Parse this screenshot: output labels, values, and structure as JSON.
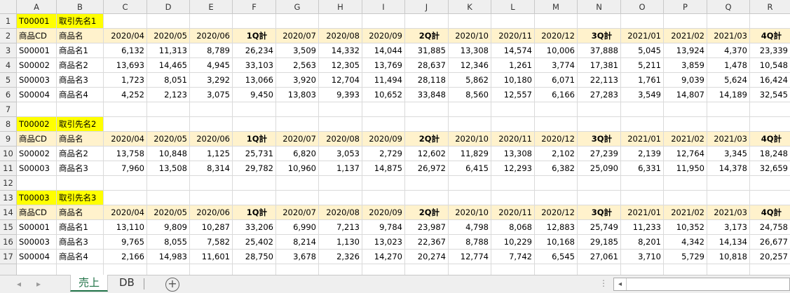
{
  "columns": [
    "A",
    "B",
    "C",
    "D",
    "E",
    "F",
    "G",
    "H",
    "I",
    "J",
    "K",
    "L",
    "M",
    "N",
    "O",
    "P",
    "Q",
    "R"
  ],
  "col_widths": [
    50,
    67,
    62,
    62,
    61,
    62,
    61,
    62,
    61,
    62,
    61,
    62,
    61,
    62,
    61,
    62,
    61,
    58
  ],
  "header_labels": [
    "商品CD",
    "商品名",
    "2020/04",
    "2020/05",
    "2020/06",
    "1Q計",
    "2020/07",
    "2020/08",
    "2020/09",
    "2Q計",
    "2020/10",
    "2020/11",
    "2020/12",
    "3Q計",
    "2021/01",
    "2021/02",
    "2021/03",
    "4Q計"
  ],
  "rows": [
    {
      "n": "1",
      "kind": "title",
      "code": "T00001",
      "name": "取引先名1"
    },
    {
      "n": "2",
      "kind": "header"
    },
    {
      "n": "3",
      "kind": "data",
      "cells": [
        "S00001",
        "商品名1",
        "6,132",
        "11,313",
        "8,789",
        "26,234",
        "3,509",
        "14,332",
        "14,044",
        "31,885",
        "13,308",
        "14,574",
        "10,006",
        "37,888",
        "5,045",
        "13,924",
        "4,370",
        "23,339"
      ]
    },
    {
      "n": "4",
      "kind": "data",
      "cells": [
        "S00002",
        "商品名2",
        "13,693",
        "14,465",
        "4,945",
        "33,103",
        "2,563",
        "12,305",
        "13,769",
        "28,637",
        "12,346",
        "1,261",
        "3,774",
        "17,381",
        "5,211",
        "3,859",
        "1,478",
        "10,548"
      ]
    },
    {
      "n": "5",
      "kind": "data",
      "cells": [
        "S00003",
        "商品名3",
        "1,723",
        "8,051",
        "3,292",
        "13,066",
        "3,920",
        "12,704",
        "11,494",
        "28,118",
        "5,862",
        "10,180",
        "6,071",
        "22,113",
        "1,761",
        "9,039",
        "5,624",
        "16,424"
      ]
    },
    {
      "n": "6",
      "kind": "data",
      "cells": [
        "S00004",
        "商品名4",
        "4,252",
        "2,123",
        "3,075",
        "9,450",
        "13,803",
        "9,393",
        "10,652",
        "33,848",
        "8,560",
        "12,557",
        "6,166",
        "27,283",
        "3,549",
        "14,807",
        "14,189",
        "32,545"
      ]
    },
    {
      "n": "7",
      "kind": "empty"
    },
    {
      "n": "8",
      "kind": "title",
      "code": "T00002",
      "name": "取引先名2"
    },
    {
      "n": "9",
      "kind": "header"
    },
    {
      "n": "10",
      "kind": "data",
      "cells": [
        "S00002",
        "商品名2",
        "13,758",
        "10,848",
        "1,125",
        "25,731",
        "6,820",
        "3,053",
        "2,729",
        "12,602",
        "11,829",
        "13,308",
        "2,102",
        "27,239",
        "2,139",
        "12,764",
        "3,345",
        "18,248"
      ]
    },
    {
      "n": "11",
      "kind": "data",
      "cells": [
        "S00003",
        "商品名3",
        "7,960",
        "13,508",
        "8,314",
        "29,782",
        "10,960",
        "1,137",
        "14,875",
        "26,972",
        "6,415",
        "12,293",
        "6,382",
        "25,090",
        "6,331",
        "11,950",
        "14,378",
        "32,659"
      ]
    },
    {
      "n": "12",
      "kind": "empty"
    },
    {
      "n": "13",
      "kind": "title",
      "code": "T00003",
      "name": "取引先名3"
    },
    {
      "n": "14",
      "kind": "header"
    },
    {
      "n": "15",
      "kind": "data",
      "cells": [
        "S00001",
        "商品名1",
        "13,110",
        "9,809",
        "10,287",
        "33,206",
        "6,990",
        "7,213",
        "9,784",
        "23,987",
        "4,798",
        "8,068",
        "12,883",
        "25,749",
        "11,233",
        "10,352",
        "3,173",
        "24,758"
      ]
    },
    {
      "n": "16",
      "kind": "data",
      "cells": [
        "S00003",
        "商品名3",
        "9,765",
        "8,055",
        "7,582",
        "25,402",
        "8,214",
        "1,130",
        "13,023",
        "22,367",
        "8,788",
        "10,229",
        "10,168",
        "29,185",
        "8,201",
        "4,342",
        "14,134",
        "26,677"
      ]
    },
    {
      "n": "17",
      "kind": "data",
      "cells": [
        "S00004",
        "商品名4",
        "2,166",
        "14,983",
        "11,601",
        "28,750",
        "3,678",
        "2,326",
        "14,270",
        "20,274",
        "12,774",
        "7,742",
        "6,545",
        "27,061",
        "3,710",
        "5,729",
        "10,818",
        "20,257"
      ]
    }
  ],
  "sheet_tabs": [
    {
      "label": "売上",
      "active": true
    },
    {
      "label": "DB",
      "active": false
    }
  ],
  "add_sheet_label": "⊕",
  "colors": {
    "title_fill": "#ffff00",
    "header_fill": "#fff2cc",
    "active_tab": "#1e7145"
  }
}
